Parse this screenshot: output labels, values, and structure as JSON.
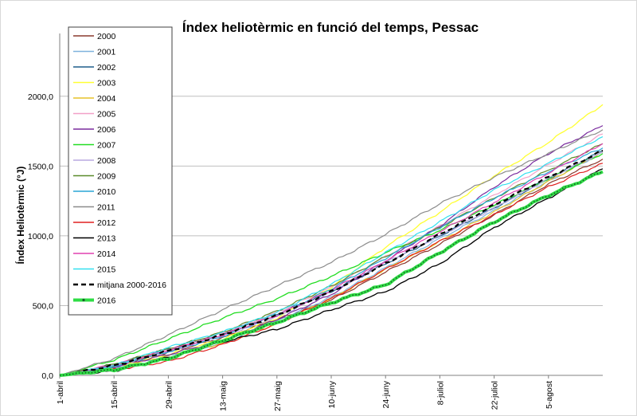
{
  "chart_data": {
    "type": "line",
    "title": "Índex heliotèrmic en funció del temps, Pessac",
    "xlabel": "",
    "ylabel": "Índex Heliotèrmic (°J)",
    "x_ticks": [
      "1-abril",
      "15-abril",
      "29-abril",
      "13-maig",
      "27-maig",
      "10-juny",
      "24-juny",
      "8-juliol",
      "22-juliol",
      "5-agost"
    ],
    "y_ticks": [
      "0,0",
      "500,0",
      "1000,0",
      "1500,0",
      "2000,0"
    ],
    "ylim": [
      0,
      2450
    ],
    "xlim_days": [
      0,
      140
    ],
    "grid": "horizontal",
    "legend_position": "top-left",
    "x_days": [
      0,
      14,
      28,
      42,
      56,
      70,
      84,
      98,
      112,
      126,
      140
    ],
    "series": [
      {
        "name": "2000",
        "color": "#8B3A2F",
        "dash": "",
        "width": 1.2,
        "values": [
          0,
          65,
          165,
          270,
          400,
          540,
          740,
          940,
          1150,
          1370,
          1550
        ]
      },
      {
        "name": "2001",
        "color": "#7FB2DE",
        "dash": "",
        "width": 1.2,
        "values": [
          0,
          50,
          140,
          230,
          390,
          560,
          770,
          980,
          1180,
          1390,
          1600
        ]
      },
      {
        "name": "2002",
        "color": "#1F5F8B",
        "dash": "",
        "width": 1.2,
        "values": [
          0,
          75,
          190,
          300,
          440,
          600,
          800,
          1000,
          1200,
          1410,
          1610
        ]
      },
      {
        "name": "2003",
        "color": "#FFFF33",
        "dash": "",
        "width": 1.3,
        "values": [
          0,
          60,
          150,
          260,
          410,
          630,
          920,
          1170,
          1430,
          1670,
          1940
        ]
      },
      {
        "name": "2004",
        "color": "#E6C229",
        "dash": "",
        "width": 1.2,
        "values": [
          0,
          55,
          140,
          230,
          370,
          550,
          760,
          960,
          1170,
          1390,
          1600
        ]
      },
      {
        "name": "2005",
        "color": "#F2A0C8",
        "dash": "",
        "width": 1.2,
        "values": [
          0,
          70,
          180,
          300,
          450,
          630,
          850,
          1070,
          1290,
          1510,
          1730
        ]
      },
      {
        "name": "2006",
        "color": "#7A2B9E",
        "dash": "",
        "width": 1.2,
        "values": [
          0,
          60,
          150,
          250,
          400,
          580,
          820,
          1070,
          1350,
          1590,
          1790
        ]
      },
      {
        "name": "2007",
        "color": "#22DD22",
        "dash": "",
        "width": 1.3,
        "values": [
          0,
          110,
          260,
          410,
          550,
          710,
          880,
          1040,
          1220,
          1410,
          1590
        ]
      },
      {
        "name": "2008",
        "color": "#B8A8E0",
        "dash": "",
        "width": 1.2,
        "values": [
          0,
          70,
          170,
          280,
          420,
          600,
          810,
          1000,
          1200,
          1410,
          1600
        ]
      },
      {
        "name": "2009",
        "color": "#5A8A2A",
        "dash": "",
        "width": 1.2,
        "values": [
          0,
          80,
          190,
          310,
          460,
          640,
          850,
          1060,
          1270,
          1470,
          1660
        ]
      },
      {
        "name": "2010",
        "color": "#2AA6D6",
        "dash": "",
        "width": 1.2,
        "values": [
          0,
          65,
          170,
          280,
          430,
          620,
          840,
          1060,
          1270,
          1460,
          1630
        ]
      },
      {
        "name": "2011",
        "color": "#8C8C8C",
        "dash": "",
        "width": 1.2,
        "values": [
          0,
          120,
          290,
          470,
          640,
          810,
          1010,
          1230,
          1420,
          1590,
          1760
        ]
      },
      {
        "name": "2012",
        "color": "#E02020",
        "dash": "",
        "width": 1.2,
        "values": [
          0,
          40,
          100,
          220,
          370,
          550,
          760,
          960,
          1150,
          1350,
          1520
        ]
      },
      {
        "name": "2013",
        "color": "#000000",
        "dash": "",
        "width": 1.3,
        "values": [
          0,
          30,
          130,
          240,
          330,
          470,
          600,
          800,
          1060,
          1270,
          1480
        ]
      },
      {
        "name": "2014",
        "color": "#E040B0",
        "dash": "",
        "width": 1.2,
        "values": [
          0,
          75,
          180,
          290,
          430,
          610,
          820,
          1030,
          1240,
          1450,
          1660
        ]
      },
      {
        "name": "2015",
        "color": "#33E0F0",
        "dash": "",
        "width": 1.2,
        "values": [
          0,
          70,
          200,
          310,
          450,
          650,
          880,
          1100,
          1330,
          1520,
          1710
        ]
      },
      {
        "name": "mitjana 2000-2016",
        "color": "#000000",
        "dash": "6,4",
        "width": 2.2,
        "values": [
          0,
          70,
          175,
          290,
          430,
          600,
          800,
          1010,
          1220,
          1420,
          1610
        ]
      },
      {
        "name": "2016",
        "color": "#2EDD44",
        "dash": "",
        "width": 4,
        "dots": true,
        "values": [
          0,
          40,
          120,
          250,
          380,
          520,
          650,
          880,
          1100,
          1290,
          1460
        ]
      }
    ]
  }
}
